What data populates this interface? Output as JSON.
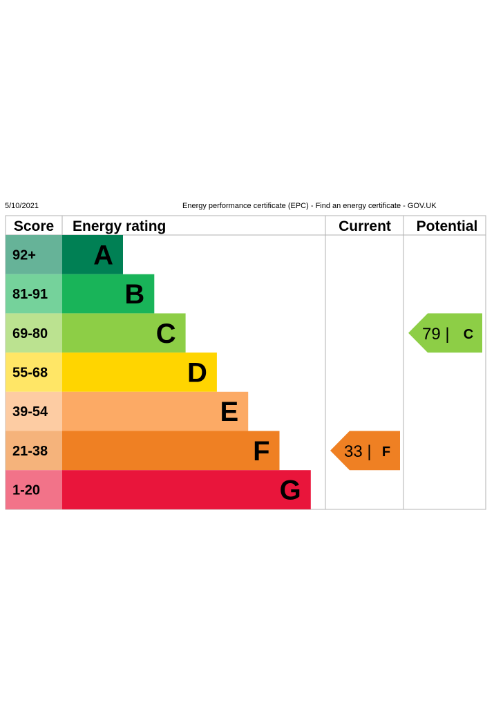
{
  "header": {
    "date": "5/10/2021",
    "title": "Energy performance certificate (EPC) - Find an energy certificate - GOV.UK"
  },
  "chart_data": {
    "type": "bar",
    "columns": {
      "score": "Score",
      "rating": "Energy rating",
      "current": "Current",
      "potential": "Potential"
    },
    "bands": [
      {
        "letter": "A",
        "range": "92+",
        "color": "#008054",
        "score_color": "#66b398"
      },
      {
        "letter": "B",
        "range": "81-91",
        "color": "#19b459",
        "score_color": "#75d29b"
      },
      {
        "letter": "C",
        "range": "69-80",
        "color": "#8dce46",
        "score_color": "#bbe290"
      },
      {
        "letter": "D",
        "range": "55-68",
        "color": "#ffd500",
        "score_color": "#ffe666"
      },
      {
        "letter": "E",
        "range": "39-54",
        "color": "#fcaa65",
        "score_color": "#fdcca3"
      },
      {
        "letter": "F",
        "range": "21-38",
        "color": "#ef8023",
        "score_color": "#f5b37b"
      },
      {
        "letter": "G",
        "range": "1-20",
        "color": "#e9153b",
        "score_color": "#f27389"
      }
    ],
    "current": {
      "score": 33,
      "band": "F",
      "label": "33 |",
      "color": "#ef8023"
    },
    "potential": {
      "score": 79,
      "band": "C",
      "label": "79 |",
      "color": "#8dce46"
    }
  }
}
